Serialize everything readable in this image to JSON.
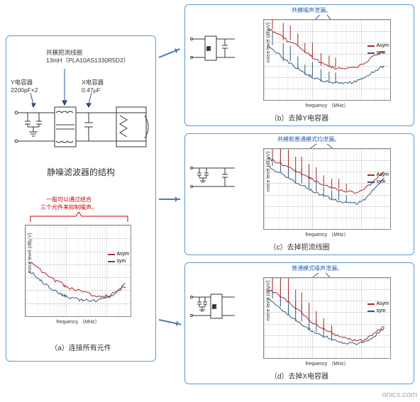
{
  "colors": {
    "asym": "#a82828",
    "sym": "#2e5a82",
    "panel": "#5b9bd5",
    "note": "#c00",
    "note_blue": "#2a5caa",
    "grid": "#ddd"
  },
  "labels": {
    "struct_title": "静噪滤波器的结构",
    "y_cap": "Y电容器\n2200pF×2",
    "x_cap": "X电容器\n0.47μF",
    "choke": "共模扼流线圈\n13mH（PLA10AS1330R5D2）",
    "cap_a": "（a）连接所有元件",
    "cap_b": "（b）去掉Y电容器",
    "cap_c": "（c）去掉扼流线圈",
    "cap_d": "（d）去掉X电容器",
    "note_a": "一般可以通过结合\n三个元件来抑制噪声。",
    "note_b": "共模噪声泄漏。",
    "note_c": "共模和普通模式均泄漏。",
    "note_d": "普通模式噪声泄漏。",
    "ylabel": "noise level (dBμV)",
    "xlabel": "frequency （MHz）",
    "legend_asym": "Asym",
    "legend_sym": "sym",
    "watermark": "onics.com"
  },
  "chart": {
    "ylim": [
      20,
      90
    ],
    "yticks": [
      20,
      30,
      40,
      50,
      60,
      70,
      80,
      90
    ],
    "xticks_log": [
      0.1,
      1,
      10
    ],
    "xlim_log": [
      0.1,
      40
    ]
  },
  "series": {
    "a_asym": [
      [
        0.12,
        62
      ],
      [
        0.2,
        58
      ],
      [
        0.3,
        53
      ],
      [
        0.5,
        48
      ],
      [
        0.8,
        45
      ],
      [
        1,
        42
      ],
      [
        2,
        40
      ],
      [
        3,
        38
      ],
      [
        5,
        36
      ],
      [
        8,
        35
      ],
      [
        12,
        36
      ],
      [
        20,
        40
      ],
      [
        30,
        43
      ]
    ],
    "a_sym": [
      [
        0.12,
        55
      ],
      [
        0.2,
        50
      ],
      [
        0.3,
        45
      ],
      [
        0.5,
        40
      ],
      [
        0.8,
        37
      ],
      [
        1,
        35
      ],
      [
        2,
        33
      ],
      [
        3,
        32
      ],
      [
        5,
        32
      ],
      [
        8,
        33
      ],
      [
        12,
        35
      ],
      [
        20,
        40
      ],
      [
        30,
        45
      ]
    ],
    "b_asym": [
      [
        0.12,
        82
      ],
      [
        0.2,
        78
      ],
      [
        0.3,
        72
      ],
      [
        0.5,
        67
      ],
      [
        0.8,
        61
      ],
      [
        1,
        57
      ],
      [
        2,
        50
      ],
      [
        3,
        48
      ],
      [
        5,
        47
      ],
      [
        8,
        48
      ],
      [
        12,
        52
      ],
      [
        20,
        60
      ],
      [
        30,
        62
      ]
    ],
    "b_sym": [
      [
        0.12,
        68
      ],
      [
        0.2,
        60
      ],
      [
        0.3,
        54
      ],
      [
        0.5,
        47
      ],
      [
        0.8,
        42
      ],
      [
        1,
        40
      ],
      [
        2,
        36
      ],
      [
        3,
        35
      ],
      [
        5,
        35
      ],
      [
        8,
        36
      ],
      [
        12,
        40
      ],
      [
        20,
        46
      ],
      [
        30,
        50
      ]
    ],
    "c_asym": [
      [
        0.12,
        82
      ],
      [
        0.2,
        78
      ],
      [
        0.3,
        74
      ],
      [
        0.5,
        70
      ],
      [
        0.8,
        66
      ],
      [
        1,
        63
      ],
      [
        2,
        58
      ],
      [
        3,
        55
      ],
      [
        5,
        53
      ],
      [
        8,
        52
      ],
      [
        12,
        55
      ],
      [
        20,
        63
      ],
      [
        30,
        70
      ]
    ],
    "c_sym": [
      [
        0.12,
        75
      ],
      [
        0.2,
        70
      ],
      [
        0.3,
        65
      ],
      [
        0.5,
        60
      ],
      [
        0.8,
        56
      ],
      [
        1,
        53
      ],
      [
        2,
        48
      ],
      [
        3,
        45
      ],
      [
        5,
        43
      ],
      [
        8,
        42
      ],
      [
        12,
        46
      ],
      [
        20,
        56
      ],
      [
        30,
        65
      ]
    ],
    "d_asym": [
      [
        0.12,
        80
      ],
      [
        0.2,
        75
      ],
      [
        0.3,
        70
      ],
      [
        0.5,
        62
      ],
      [
        0.8,
        55
      ],
      [
        1,
        50
      ],
      [
        2,
        44
      ],
      [
        3,
        40
      ],
      [
        5,
        37
      ],
      [
        8,
        35
      ],
      [
        12,
        36
      ],
      [
        20,
        42
      ],
      [
        30,
        48
      ]
    ],
    "d_sym": [
      [
        0.12,
        72
      ],
      [
        0.2,
        65
      ],
      [
        0.3,
        58
      ],
      [
        0.5,
        52
      ],
      [
        0.8,
        46
      ],
      [
        1,
        43
      ],
      [
        2,
        38
      ],
      [
        3,
        35
      ],
      [
        5,
        33
      ],
      [
        8,
        32
      ],
      [
        12,
        34
      ],
      [
        20,
        40
      ],
      [
        30,
        46
      ]
    ]
  },
  "spikes": {
    "b": [
      [
        0.15,
        5
      ],
      [
        0.25,
        7
      ],
      [
        0.35,
        6
      ],
      [
        0.5,
        5
      ],
      [
        0.7,
        4
      ],
      [
        1,
        6
      ],
      [
        1.5,
        5
      ],
      [
        2.2,
        4
      ],
      [
        3,
        4
      ]
    ],
    "c": [
      [
        0.15,
        6
      ],
      [
        0.22,
        7
      ],
      [
        0.32,
        7
      ],
      [
        0.45,
        6
      ],
      [
        0.6,
        6
      ],
      [
        0.85,
        5
      ],
      [
        1.2,
        5
      ],
      [
        1.7,
        4
      ],
      [
        2.5,
        4
      ],
      [
        3.5,
        4
      ],
      [
        5,
        3
      ]
    ],
    "d": [
      [
        0.15,
        8
      ],
      [
        0.22,
        10
      ],
      [
        0.32,
        9
      ],
      [
        0.45,
        8
      ],
      [
        0.6,
        7
      ],
      [
        0.85,
        6
      ],
      [
        1.2,
        5
      ],
      [
        1.7,
        5
      ],
      [
        2.5,
        4
      ]
    ]
  }
}
